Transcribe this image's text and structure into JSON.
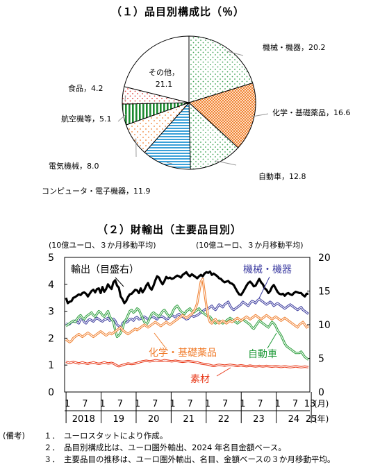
{
  "pie_title": "（１）品目別構成比（％）",
  "line_title": "（２）財輸出（主要品目別）",
  "chart_data": [
    {
      "type": "pie",
      "slices": [
        {
          "name": "機械・機器",
          "value": 20.2,
          "label": "機械・機器，20.2",
          "pattern": "dots-green"
        },
        {
          "name": "化学・基礎薬品",
          "value": 16.6,
          "label": "化学・基礎薬品，16.6",
          "pattern": "dense-orange"
        },
        {
          "name": "自動車",
          "value": 12.8,
          "label": "自動車，12.8",
          "pattern": "dots-green"
        },
        {
          "name": "コンピュータ・電子機器",
          "value": 11.9,
          "label": "コンピュータ・電子機器，11.9",
          "pattern": "hstripes-blue"
        },
        {
          "name": "電気機械",
          "value": 8.0,
          "label": "電気機械，8.0",
          "pattern": "dots-orange"
        },
        {
          "name": "航空機等",
          "value": 5.1,
          "label": "航空機等，5.1",
          "pattern": "vstripes-green"
        },
        {
          "name": "食品",
          "value": 4.2,
          "label": "食品，4.2",
          "pattern": "dots-red"
        },
        {
          "name": "その他",
          "value": 21.1,
          "label": "その他，\n21.1",
          "pattern": "none"
        }
      ]
    },
    {
      "type": "line",
      "left_axis_label": "(10億ユーロ、３か月移動平均)",
      "right_axis_label": "(10億ユーロ、３か月移動平均)",
      "left_ylim": [
        0,
        5
      ],
      "left_ticks": [
        "5",
        "4",
        "3",
        "2",
        "1",
        "0"
      ],
      "right_ylim": [
        0,
        20
      ],
      "right_ticks": [
        "20",
        "15",
        "10",
        "5",
        "0"
      ],
      "month_ticks": [
        "1",
        "7",
        "1",
        "7",
        "1",
        "7",
        "1",
        "7",
        "1",
        "7",
        "1",
        "7",
        "1",
        "7",
        "13"
      ],
      "year_labels": [
        "2018",
        "19",
        "20",
        "21",
        "22",
        "23",
        "24",
        "25"
      ],
      "month_unit": "(月)",
      "year_unit": "(年)",
      "x_start": "2017-12",
      "x_end": "2025-01",
      "series": [
        {
          "name": "輸出（目盛右）",
          "axis": "right",
          "color": "#000000",
          "style": "thick",
          "values": [
            14,
            13.2,
            13.4,
            13.5,
            14,
            14.1,
            14.3,
            14.5,
            14.4,
            14.7,
            14.8,
            14.6,
            14.2,
            14.6,
            15,
            15.2,
            14.8,
            15.3,
            15.4,
            14.7,
            15.6,
            14.9,
            15.3,
            16,
            15.6,
            15.3,
            16.3,
            16.6,
            15.8,
            15.5,
            14.2,
            13.8,
            13.2,
            13.5,
            14.1,
            14.5,
            14.6,
            14.9,
            15.2,
            15.1,
            14.7,
            15.4,
            14.8,
            15.2,
            15.8,
            16.2,
            15.5,
            15.2,
            15.8,
            16.6,
            17.2,
            17,
            16.4,
            16,
            16.5,
            17.1,
            16.9,
            17,
            16.8,
            16.9,
            17.1,
            17.3,
            17.2,
            17,
            17.4,
            17.6,
            17.8,
            17.4,
            17.2,
            17.5,
            17.3,
            17.1,
            16.9,
            17.2,
            17.4,
            17.2,
            17.6,
            17.8,
            17.7,
            17.9,
            17.4,
            17.6,
            17.4,
            17.2,
            16.9,
            16.8,
            16.5,
            16.3,
            16.4,
            16.5,
            16.2,
            16.1,
            15.9,
            15.4,
            14.9,
            14.5,
            14.4,
            14.8,
            15.3,
            15.8,
            16.2,
            16.4,
            16.1,
            15.7,
            15.8,
            16.3,
            16.8,
            16.3,
            16,
            15.4,
            15.2,
            14.7,
            15,
            15.6,
            15.9,
            15.4,
            14.9,
            14.6,
            14.5,
            14.6,
            14.3,
            14.6,
            14.7,
            14.5,
            14.4,
            14.7,
            14.9,
            14.8,
            14.7,
            14.7,
            14.4,
            14.2,
            14.6,
            14.6
          ]
        },
        {
          "name": "機械・機器",
          "axis": "left",
          "color": "#4040a0",
          "style": "double",
          "values": [
            2.55,
            2.5,
            2.52,
            2.6,
            2.62,
            2.65,
            2.6,
            2.55,
            2.7,
            2.72,
            2.6,
            2.55,
            2.65,
            2.7,
            2.66,
            2.62,
            2.7,
            2.75,
            2.7,
            2.65,
            2.62,
            2.68,
            2.7,
            2.75,
            2.65,
            2.7,
            2.72,
            2.65,
            2.5,
            2.45,
            2.35,
            2.55,
            2.62,
            2.58,
            2.62,
            2.7,
            2.72,
            2.65,
            2.75,
            2.78,
            2.7,
            2.72,
            2.78,
            2.8,
            2.75,
            2.7,
            2.75,
            2.8,
            2.78,
            2.74,
            2.7,
            2.78,
            2.8,
            2.8,
            2.75,
            2.7,
            2.72,
            2.8,
            2.85,
            2.82,
            2.78,
            2.85,
            2.9,
            2.82,
            2.8,
            2.75,
            2.7,
            2.72,
            2.8,
            2.85,
            2.8,
            2.82,
            2.85,
            2.9,
            2.95,
            3.0,
            3.05,
            3.1,
            3.1,
            3.15,
            3.2,
            3.1,
            3.05,
            3.15,
            3.25,
            3.2,
            3.15,
            3.25,
            3.3,
            3.35,
            3.2,
            3.1,
            3.05,
            3.1,
            3.15,
            3.2,
            3.25,
            3.35,
            3.3,
            3.25,
            3.2,
            3.3,
            3.38,
            3.35,
            3.3,
            3.4,
            3.45,
            3.4,
            3.35,
            3.3,
            3.25,
            3.3,
            3.35,
            3.3,
            3.2,
            3.25,
            3.3,
            3.25,
            3.2,
            3.15,
            3.1,
            3.15,
            3.2,
            3.25,
            3.2,
            3.15,
            3.1,
            3.05,
            3.1,
            3.15,
            3.05,
            3.0,
            2.95,
            2.9
          ]
        },
        {
          "name": "自動車",
          "axis": "left",
          "color": "#30a040",
          "style": "double",
          "values": [
            2.45,
            2.5,
            2.55,
            2.6,
            2.65,
            2.6,
            2.7,
            2.8,
            2.85,
            2.75,
            2.7,
            2.8,
            2.85,
            2.9,
            2.95,
            2.85,
            2.8,
            2.9,
            3.0,
            2.95,
            2.85,
            2.8,
            2.9,
            3.0,
            2.8,
            2.7,
            2.6,
            2.3,
            2.05,
            2.1,
            2.2,
            2.35,
            2.6,
            2.7,
            2.85,
            3.0,
            3.05,
            2.95,
            3.0,
            3.1,
            3.05,
            2.9,
            2.75,
            2.6,
            2.5,
            2.6,
            2.75,
            2.9,
            2.95,
            2.9,
            2.85,
            2.8,
            2.9,
            3.0,
            3.05,
            2.95,
            2.85,
            2.8,
            2.9,
            3.05,
            3.15,
            3.2,
            3.1,
            3.0,
            2.95,
            2.9,
            3.0,
            3.05,
            3.1,
            3.0,
            2.95,
            3.0,
            3.05,
            3.1,
            3.0,
            2.95,
            2.9,
            2.85,
            2.8,
            2.8,
            2.7,
            2.6,
            2.55,
            2.6,
            2.65,
            2.6,
            2.55,
            2.6,
            2.65,
            2.7,
            2.75,
            2.7,
            2.65,
            2.6,
            2.55,
            2.6,
            2.65,
            2.7,
            2.65,
            2.6,
            2.55,
            2.5,
            2.4,
            2.35,
            2.45,
            2.55,
            2.65,
            2.6,
            2.55,
            2.5,
            2.45,
            2.4,
            2.5,
            2.6,
            2.55,
            2.45,
            2.3,
            2.2,
            2.1,
            1.95,
            1.8,
            1.7,
            1.65,
            1.6,
            1.55,
            1.5,
            1.45,
            1.45,
            1.45,
            1.5,
            1.4,
            1.3,
            1.25,
            1.2
          ]
        },
        {
          "name": "化学・基礎薬品",
          "axis": "left",
          "color": "#f08030",
          "style": "double",
          "values": [
            1.95,
            1.9,
            1.85,
            1.9,
            2.0,
            2.05,
            2.1,
            2.15,
            2.1,
            2.05,
            2.1,
            2.15,
            2.2,
            2.15,
            2.1,
            2.05,
            2.1,
            2.15,
            2.2,
            2.25,
            2.2,
            2.15,
            2.1,
            2.15,
            2.2,
            2.15,
            2.2,
            2.25,
            2.3,
            2.35,
            2.4,
            2.3,
            2.25,
            2.2,
            2.15,
            2.2,
            2.25,
            2.3,
            2.35,
            2.3,
            2.35,
            2.4,
            2.45,
            2.5,
            2.45,
            2.4,
            2.45,
            2.5,
            2.55,
            2.6,
            2.55,
            2.5,
            2.45,
            2.5,
            2.55,
            2.6,
            2.55,
            2.5,
            2.55,
            2.6,
            2.65,
            2.7,
            2.75,
            2.8,
            2.85,
            2.8,
            2.75,
            2.8,
            2.85,
            2.9,
            3.0,
            3.1,
            3.3,
            3.7,
            4.1,
            4.2,
            3.7,
            3.2,
            2.8,
            2.6,
            2.55,
            2.65,
            2.7,
            2.6,
            2.55,
            2.6,
            2.65,
            2.6,
            2.55,
            2.6,
            2.65,
            2.6,
            2.65,
            2.7,
            2.75,
            2.7,
            2.65,
            2.7,
            2.75,
            2.8,
            2.75,
            2.7,
            2.75,
            2.8,
            2.85,
            2.8,
            2.75,
            2.7,
            2.75,
            2.8,
            2.85,
            2.8,
            2.75,
            2.7,
            2.75,
            2.8,
            2.75,
            2.7,
            2.65,
            2.7,
            2.75,
            2.7,
            2.65,
            2.6,
            2.55,
            2.5,
            2.45,
            2.4,
            2.5,
            2.55,
            2.6,
            2.5,
            2.4,
            2.45
          ]
        },
        {
          "name": "素材",
          "axis": "left",
          "color": "#e83818",
          "style": "double",
          "values": [
            1.12,
            1.1,
            1.08,
            1.1,
            1.12,
            1.1,
            1.08,
            1.06,
            1.08,
            1.1,
            1.08,
            1.06,
            1.05,
            1.07,
            1.08,
            1.1,
            1.08,
            1.06,
            1.05,
            1.06,
            1.08,
            1.1,
            1.08,
            1.06,
            1.07,
            1.08,
            1.06,
            1.02,
            0.98,
            0.96,
            0.98,
            1.0,
            1.02,
            1.04,
            1.06,
            1.05,
            1.04,
            1.05,
            1.06,
            1.08,
            1.1,
            1.12,
            1.14,
            1.15,
            1.16,
            1.15,
            1.14,
            1.15,
            1.16,
            1.18,
            1.17,
            1.16,
            1.15,
            1.16,
            1.18,
            1.17,
            1.16,
            1.15,
            1.14,
            1.15,
            1.16,
            1.15,
            1.14,
            1.13,
            1.12,
            1.13,
            1.14,
            1.15,
            1.14,
            1.13,
            1.12,
            1.11,
            1.1,
            1.08,
            1.06,
            1.05,
            1.04,
            1.03,
            1.02,
            1.0,
            0.98,
            0.97,
            0.98,
            1.0,
            1.01,
            1.0,
            0.99,
            0.98,
            0.99,
            1.0,
            1.01,
            1.0,
            0.99,
            0.98,
            0.97,
            0.98,
            0.99,
            0.98,
            0.97,
            0.96,
            0.97,
            0.98,
            0.97,
            0.96,
            0.95,
            0.96,
            0.97,
            0.96,
            0.95,
            0.96,
            0.97,
            0.96,
            0.95,
            0.94,
            0.95,
            0.96,
            0.95,
            0.94,
            0.93,
            0.94,
            0.95,
            0.94,
            0.93,
            0.92,
            0.93,
            0.94,
            0.95,
            0.94,
            0.93,
            0.92,
            0.93,
            0.94,
            0.93,
            0.92
          ]
        }
      ],
      "annotations": [
        "輸出（目盛右）",
        "機械・機器",
        "化学・基礎薬品",
        "自動車",
        "素材"
      ]
    }
  ],
  "notes": {
    "head": "(備考)",
    "items": [
      {
        "num": "１．",
        "text": "ユーロスタットにより作成。"
      },
      {
        "num": "２．",
        "text": "品目別構成比は、ユーロ圏外輸出、2024 年名目金額ベース。"
      },
      {
        "num": "３．",
        "text": "主要品目の推移は、ユーロ圏外輸出、名目、金額ベースの３か月移動平均。"
      }
    ]
  }
}
